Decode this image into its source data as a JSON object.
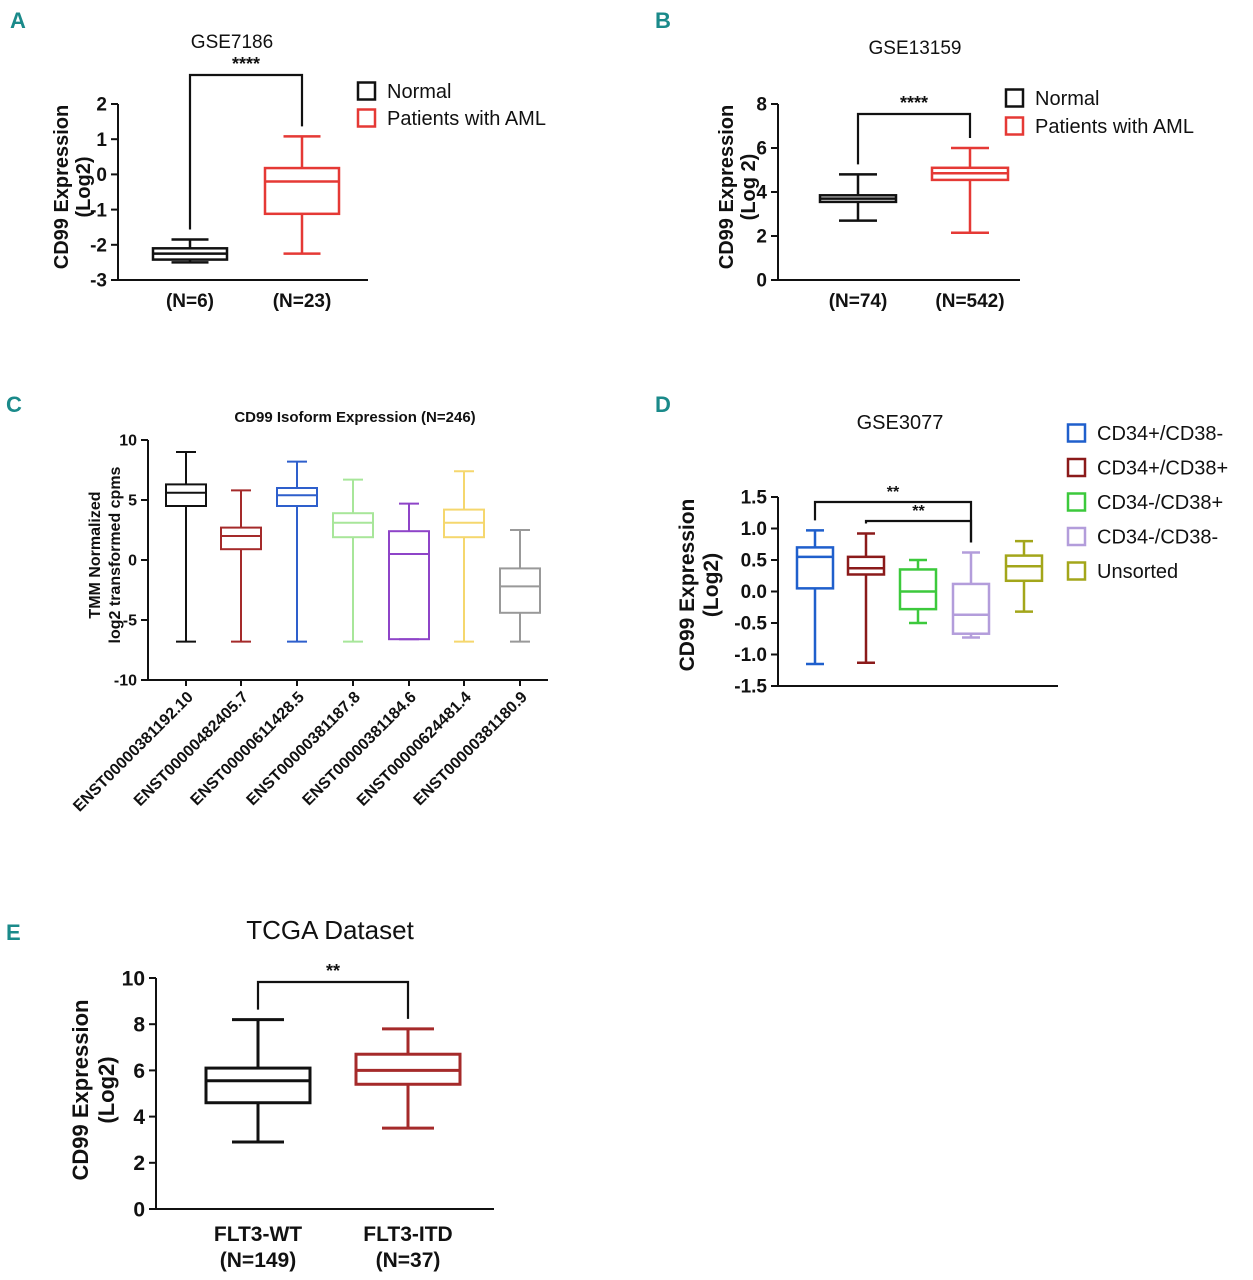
{
  "chart_data": [
    {
      "panel": "A",
      "type": "box",
      "title": "GSE7186",
      "ylabel": [
        "CD99 Expression",
        "(Log2)"
      ],
      "ylim": [
        -3,
        2
      ],
      "yticks": [
        "2",
        "1",
        "0",
        "-1",
        "-2",
        "-3"
      ],
      "ytick_values": [
        2,
        1,
        0,
        -1,
        -2,
        -3
      ],
      "categories": [
        "(N=6)",
        "(N=23)"
      ],
      "series": [
        {
          "name": "Normal",
          "color": "#111111",
          "min": -2.5,
          "q1": -2.42,
          "median": -2.25,
          "q3": -2.1,
          "max": -1.85
        },
        {
          "name": "Patients with  AML",
          "color": "#e53935",
          "min": -2.25,
          "q1": -1.12,
          "median": -0.2,
          "q3": 0.18,
          "max": 1.08
        }
      ],
      "legend": [
        "Normal",
        "Patients with  AML"
      ],
      "significance": [
        {
          "from": 0,
          "to": 1,
          "label": "****"
        }
      ]
    },
    {
      "panel": "B",
      "type": "box",
      "title": "GSE13159",
      "ylabel": [
        "CD99 Expression",
        "(Log 2)"
      ],
      "ylim": [
        0,
        8
      ],
      "yticks": [
        "8",
        "6",
        "4",
        "2",
        "0"
      ],
      "ytick_values": [
        8,
        6,
        4,
        2,
        0
      ],
      "categories": [
        "(N=74)",
        "(N=542)"
      ],
      "series": [
        {
          "name": "Normal",
          "color": "#111111",
          "min": 2.7,
          "q1": 3.55,
          "median": 3.7,
          "q3": 3.85,
          "max": 4.8
        },
        {
          "name": "Patients with  AML",
          "color": "#e53935",
          "min": 2.15,
          "q1": 4.55,
          "median": 4.85,
          "q3": 5.1,
          "max": 6.0
        }
      ],
      "legend": [
        "Normal",
        "Patients with  AML"
      ],
      "significance": [
        {
          "from": 0,
          "to": 1,
          "label": "****"
        }
      ]
    },
    {
      "panel": "C",
      "type": "box",
      "title": "CD99 Isoform Expression (N=246)",
      "ylabel": [
        "TMM Normalized",
        "log2 transformed cpms"
      ],
      "ylim": [
        -10,
        10
      ],
      "yticks": [
        "10",
        "5",
        "0",
        "-5",
        "-10"
      ],
      "ytick_values": [
        10,
        5,
        0,
        -5,
        -10
      ],
      "categories": [
        "ENST00000381192.10",
        "ENST00000482405.7",
        "ENST00000611428.5",
        "ENST00000381187.8",
        "ENST00000381184.6",
        "ENST00000624481.4",
        "ENST00000381180.9"
      ],
      "series": [
        {
          "name": "ENST00000381192.10",
          "color": "#111111",
          "min": -6.8,
          "q1": 4.5,
          "median": 5.6,
          "q3": 6.3,
          "max": 9.0
        },
        {
          "name": "ENST00000482405.7",
          "color": "#a52a2a",
          "min": -6.8,
          "q1": 0.9,
          "median": 2.0,
          "q3": 2.7,
          "max": 5.8
        },
        {
          "name": "ENST00000611428.5",
          "color": "#2e5fcc",
          "min": -6.8,
          "q1": 4.5,
          "median": 5.4,
          "q3": 6.0,
          "max": 8.2
        },
        {
          "name": "ENST00000381187.8",
          "color": "#a8e69a",
          "min": -6.8,
          "q1": 1.9,
          "median": 3.1,
          "q3": 3.9,
          "max": 6.7
        },
        {
          "name": "ENST00000381184.6",
          "color": "#8e44c8",
          "min": -6.6,
          "q1": -6.6,
          "median": 0.5,
          "q3": 2.4,
          "max": 4.7
        },
        {
          "name": "ENST00000624481.4",
          "color": "#f5d76e",
          "min": -6.8,
          "q1": 1.9,
          "median": 3.1,
          "q3": 4.2,
          "max": 7.4
        },
        {
          "name": "ENST00000381180.9",
          "color": "#999999",
          "min": -6.8,
          "q1": -4.4,
          "median": -2.2,
          "q3": -0.7,
          "max": 2.5
        }
      ]
    },
    {
      "panel": "D",
      "type": "box",
      "title": "GSE3077",
      "ylabel": [
        "CD99 Expression",
        "(Log2)"
      ],
      "ylim": [
        -1.5,
        1.5
      ],
      "yticks": [
        "1.5",
        "1.0",
        "0.5",
        "0.0",
        "-0.5",
        "-1.0",
        "-1.5"
      ],
      "ytick_values": [
        1.5,
        1.0,
        0.5,
        0.0,
        -0.5,
        -1.0,
        -1.5
      ],
      "categories": [
        "CD34+/CD38-",
        "CD34+/CD38+",
        "CD34-/CD38+",
        "CD34-/CD38-",
        "Unsorted"
      ],
      "series": [
        {
          "name": "CD34+/CD38-",
          "color": "#1f5fcc",
          "min": -1.15,
          "q1": 0.05,
          "median": 0.55,
          "q3": 0.7,
          "max": 0.97
        },
        {
          "name": "CD34+/CD38+",
          "color": "#8b1a1a",
          "min": -1.13,
          "q1": 0.27,
          "median": 0.37,
          "q3": 0.55,
          "max": 0.92
        },
        {
          "name": "CD34-/CD38+",
          "color": "#3cc93c",
          "min": -0.5,
          "q1": -0.28,
          "median": 0.0,
          "q3": 0.35,
          "max": 0.5
        },
        {
          "name": "CD34-/CD38-",
          "color": "#b39ddb",
          "min": -0.73,
          "q1": -0.67,
          "median": -0.37,
          "q3": 0.12,
          "max": 0.62
        },
        {
          "name": "Unsorted",
          "color": "#a3a61a",
          "min": -0.32,
          "q1": 0.17,
          "median": 0.4,
          "q3": 0.57,
          "max": 0.8
        }
      ],
      "legend": [
        "CD34+/CD38-",
        "CD34+/CD38+",
        "CD34-/CD38+",
        "CD34-/CD38-",
        "Unsorted"
      ],
      "significance": [
        {
          "from": 0,
          "to": 3,
          "label": "**"
        },
        {
          "from": 1,
          "to": 3,
          "label": "**"
        }
      ]
    },
    {
      "panel": "E",
      "type": "box",
      "title": "TCGA Dataset",
      "ylabel": [
        "CD99 Expression",
        "(Log2)"
      ],
      "ylim": [
        0,
        10
      ],
      "yticks": [
        "10",
        "8",
        "6",
        "4",
        "2",
        "0"
      ],
      "ytick_values": [
        10,
        8,
        6,
        4,
        2,
        0
      ],
      "categories": [
        "FLT3-WT",
        "FLT3-ITD"
      ],
      "category_sublabels": [
        "(N=149)",
        "(N=37)"
      ],
      "series": [
        {
          "name": "FLT3-WT",
          "color": "#111111",
          "min": 2.9,
          "q1": 4.6,
          "median": 5.55,
          "q3": 6.1,
          "max": 8.2
        },
        {
          "name": "FLT3-ITD",
          "color": "#a52a2a",
          "min": 3.5,
          "q1": 5.4,
          "median": 6.0,
          "q3": 6.7,
          "max": 7.8
        }
      ],
      "significance": [
        {
          "from": 0,
          "to": 1,
          "label": "**"
        }
      ]
    }
  ]
}
